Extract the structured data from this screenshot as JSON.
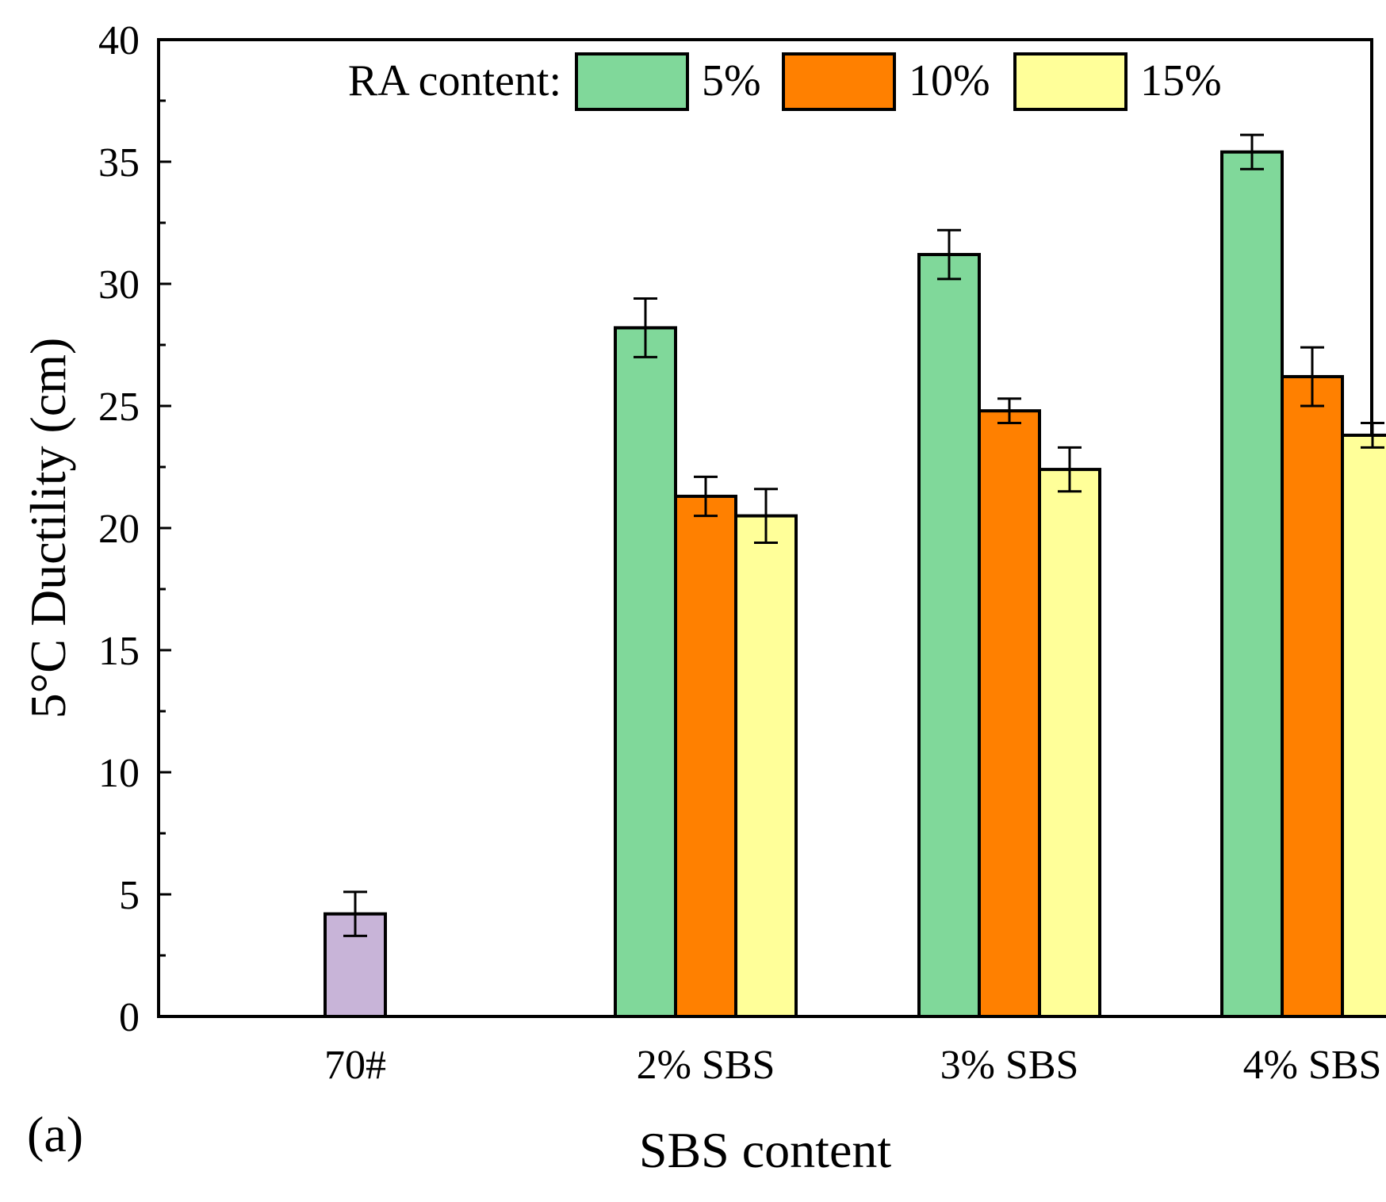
{
  "chart_data": {
    "type": "bar",
    "panel_label": "(a)",
    "xlabel": "SBS content",
    "ylabel": "5°C Ductility (cm)",
    "ylim": [
      0,
      40
    ],
    "yticks": [
      "0",
      "5",
      "10",
      "15",
      "20",
      "25",
      "30",
      "35",
      "40"
    ],
    "categories": [
      "70#",
      "2% SBS",
      "3% SBS",
      "4% SBS"
    ],
    "legend": {
      "title": "RA content:",
      "position": "top"
    },
    "series": [
      {
        "name": "5%",
        "color": "#80d89a",
        "values": [
          null,
          28.2,
          31.2,
          35.4
        ],
        "errors": [
          null,
          1.2,
          1.0,
          0.7
        ]
      },
      {
        "name": "10%",
        "color": "#ff8000",
        "values": [
          null,
          21.3,
          24.8,
          26.2
        ],
        "errors": [
          null,
          0.8,
          0.5,
          1.2
        ]
      },
      {
        "name": "15%",
        "color": "#ffff99",
        "values": [
          null,
          20.5,
          22.4,
          23.8
        ],
        "errors": [
          null,
          1.1,
          0.9,
          0.5
        ]
      }
    ],
    "baseline": {
      "category": "70#",
      "value": 4.2,
      "error": 0.9,
      "color": "#c8b4d8"
    }
  }
}
